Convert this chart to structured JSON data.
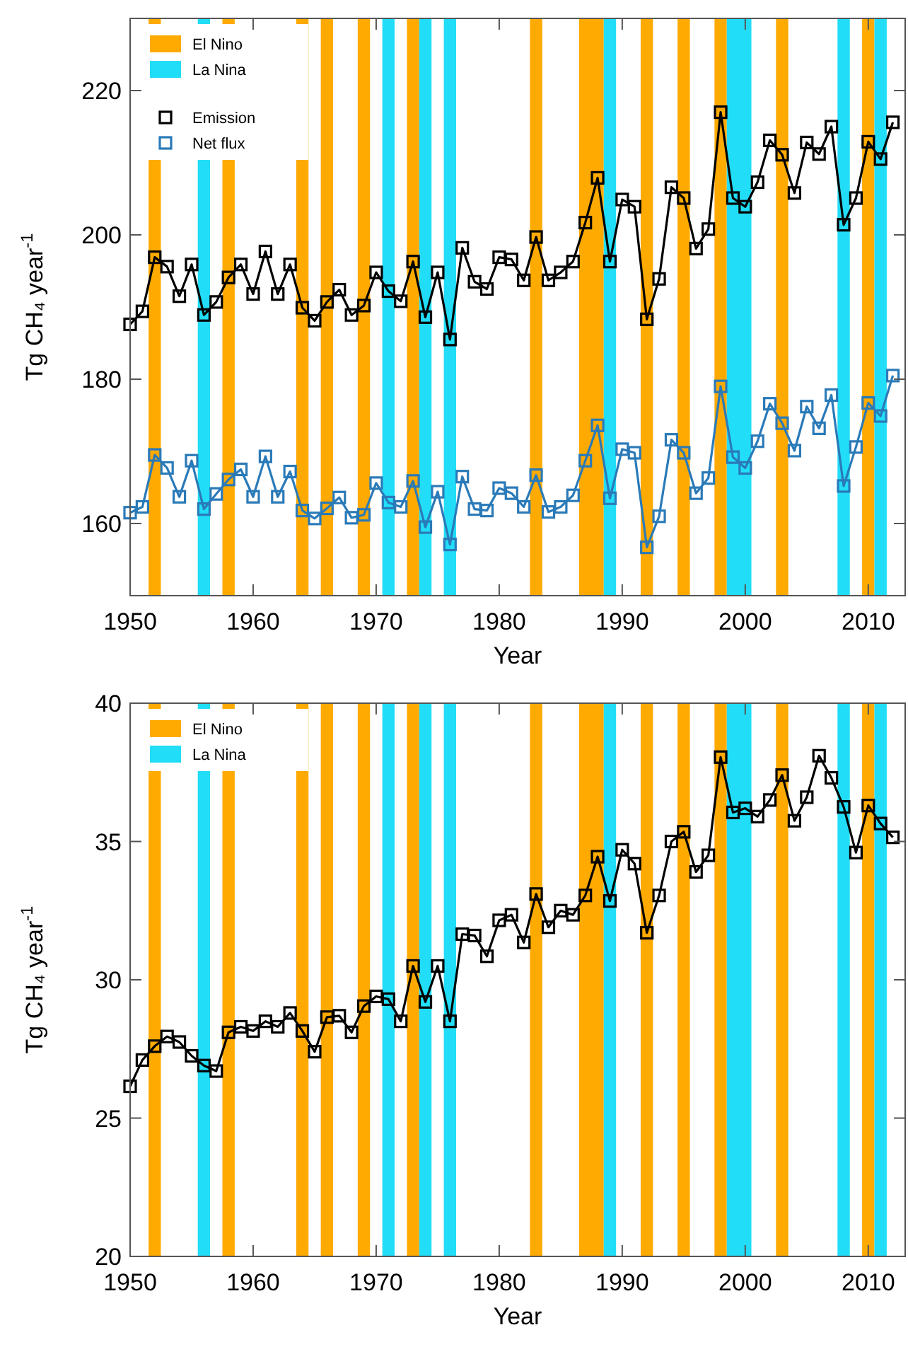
{
  "chart_data": [
    {
      "type": "line",
      "xlabel": "Year",
      "ylabel": "Tg CH₄ year$^{-1}$",
      "x": [
        1950,
        1951,
        1952,
        1953,
        1954,
        1955,
        1956,
        1957,
        1958,
        1959,
        1960,
        1961,
        1962,
        1963,
        1964,
        1965,
        1966,
        1967,
        1968,
        1969,
        1970,
        1971,
        1972,
        1973,
        1974,
        1975,
        1976,
        1977,
        1978,
        1979,
        1980,
        1981,
        1982,
        1983,
        1984,
        1985,
        1986,
        1987,
        1988,
        1989,
        1990,
        1991,
        1992,
        1993,
        1994,
        1995,
        1996,
        1997,
        1998,
        1999,
        2000,
        2001,
        2002,
        2003,
        2004,
        2005,
        2006,
        2007,
        2008,
        2009,
        2010,
        2011,
        2012
      ],
      "series": [
        {
          "name": "Emission",
          "color": "#000000",
          "values": [
            187.6,
            189.4,
            196.9,
            195.6,
            191.5,
            195.9,
            188.9,
            190.7,
            194.1,
            195.9,
            191.8,
            197.7,
            191.8,
            195.9,
            189.9,
            188.1,
            190.7,
            192.4,
            188.9,
            190.2,
            194.8,
            192.2,
            190.8,
            196.3,
            188.6,
            194.8,
            185.5,
            198.2,
            193.5,
            192.5,
            196.9,
            196.6,
            193.7,
            199.7,
            193.7,
            194.8,
            196.3,
            201.7,
            207.9,
            196.3,
            204.9,
            203.9,
            188.3,
            193.9,
            206.6,
            205.1,
            198.1,
            200.8,
            217.0,
            205.1,
            203.9,
            207.3,
            213.1,
            211.1,
            205.8,
            212.8,
            211.2,
            215.0,
            201.4,
            205.1,
            212.9,
            210.5,
            215.6
          ]
        },
        {
          "name": "Net flux",
          "color": "#2a7ab8",
          "values": [
            161.5,
            162.3,
            169.5,
            167.7,
            163.7,
            168.7,
            162.0,
            164.1,
            166.1,
            167.5,
            163.7,
            169.3,
            163.7,
            167.2,
            161.8,
            160.7,
            162.1,
            163.6,
            160.8,
            161.2,
            165.6,
            162.9,
            162.3,
            165.9,
            159.5,
            164.4,
            157.1,
            166.5,
            162.0,
            161.8,
            164.9,
            164.2,
            162.3,
            166.7,
            161.6,
            162.3,
            163.9,
            168.7,
            173.6,
            163.5,
            170.3,
            169.8,
            156.7,
            161.0,
            171.6,
            169.8,
            164.2,
            166.3,
            179.0,
            169.2,
            167.7,
            171.4,
            176.6,
            173.9,
            170.1,
            176.2,
            173.2,
            177.8,
            165.2,
            170.6,
            176.7,
            174.9,
            180.5
          ]
        }
      ],
      "xlim": [
        1950,
        2013
      ],
      "xticks": [
        1950,
        1960,
        1970,
        1980,
        1990,
        2000,
        2010
      ],
      "ylim": [
        150,
        230
      ],
      "yticks": [
        160,
        180,
        200,
        220
      ],
      "bands": [
        {
          "axis": "x",
          "from": 1951.5,
          "to": 1952.5,
          "label": "El Nino",
          "color": "#ffaa00"
        },
        {
          "axis": "x",
          "from": 1955.5,
          "to": 1956.5,
          "label": "La Nina",
          "color": "#22ddf7"
        },
        {
          "axis": "x",
          "from": 1957.5,
          "to": 1958.5,
          "color": "#ffaa00"
        },
        {
          "axis": "x",
          "from": 1963.5,
          "to": 1964.5,
          "color": "#ffaa00"
        },
        {
          "axis": "x",
          "from": 1965.5,
          "to": 1966.5,
          "color": "#ffaa00"
        },
        {
          "axis": "x",
          "from": 1968.5,
          "to": 1969.5,
          "color": "#ffaa00"
        },
        {
          "axis": "x",
          "from": 1970.5,
          "to": 1971.5,
          "color": "#22ddf7"
        },
        {
          "axis": "x",
          "from": 1972.5,
          "to": 1973.5,
          "color": "#ffaa00"
        },
        {
          "axis": "x",
          "from": 1973.5,
          "to": 1974.5,
          "color": "#22ddf7"
        },
        {
          "axis": "x",
          "from": 1975.5,
          "to": 1976.5,
          "color": "#22ddf7"
        },
        {
          "axis": "x",
          "from": 1982.5,
          "to": 1983.5,
          "color": "#ffaa00"
        },
        {
          "axis": "x",
          "from": 1986.5,
          "to": 1988.5,
          "color": "#ffaa00"
        },
        {
          "axis": "x",
          "from": 1988.5,
          "to": 1989.5,
          "color": "#22ddf7"
        },
        {
          "axis": "x",
          "from": 1991.5,
          "to": 1992.5,
          "color": "#ffaa00"
        },
        {
          "axis": "x",
          "from": 1994.5,
          "to": 1995.5,
          "color": "#ffaa00"
        },
        {
          "axis": "x",
          "from": 1997.5,
          "to": 1998.5,
          "color": "#ffaa00"
        },
        {
          "axis": "x",
          "from": 1998.5,
          "to": 2000.5,
          "color": "#22ddf7"
        },
        {
          "axis": "x",
          "from": 2002.5,
          "to": 2003.5,
          "color": "#ffaa00"
        },
        {
          "axis": "x",
          "from": 2007.5,
          "to": 2008.5,
          "color": "#22ddf7"
        },
        {
          "axis": "x",
          "from": 2009.5,
          "to": 2010.5,
          "color": "#ffaa00"
        },
        {
          "axis": "x",
          "from": 2010.5,
          "to": 2011.5,
          "color": "#22ddf7"
        }
      ],
      "marker": "square",
      "line_style": "solid",
      "legend": "top left",
      "grid": false
    },
    {
      "type": "line",
      "xlabel": "Year",
      "ylabel": "Tg CH₄ year$^{-1}$",
      "x": [
        1950,
        1951,
        1952,
        1953,
        1954,
        1955,
        1956,
        1957,
        1958,
        1959,
        1960,
        1961,
        1962,
        1963,
        1964,
        1965,
        1966,
        1967,
        1968,
        1969,
        1970,
        1971,
        1972,
        1973,
        1974,
        1975,
        1976,
        1977,
        1978,
        1979,
        1980,
        1981,
        1982,
        1983,
        1984,
        1985,
        1986,
        1987,
        1988,
        1989,
        1990,
        1991,
        1992,
        1993,
        1994,
        1995,
        1996,
        1997,
        1998,
        1999,
        2000,
        2001,
        2002,
        2003,
        2004,
        2005,
        2006,
        2007,
        2008,
        2009,
        2010,
        2011,
        2012
      ],
      "series": [
        {
          "color": "#000000",
          "values": [
            26.15,
            27.1,
            27.6,
            27.95,
            27.75,
            27.25,
            26.9,
            26.7,
            28.1,
            28.3,
            28.15,
            28.5,
            28.3,
            28.8,
            28.15,
            27.4,
            28.65,
            28.7,
            28.1,
            29.05,
            29.4,
            29.3,
            28.5,
            30.5,
            29.2,
            30.5,
            28.5,
            31.65,
            31.6,
            30.85,
            32.15,
            32.35,
            31.35,
            33.1,
            31.9,
            32.5,
            32.35,
            33.05,
            34.45,
            32.85,
            34.7,
            34.2,
            31.7,
            33.05,
            35.0,
            35.35,
            33.9,
            34.5,
            38.05,
            36.05,
            36.2,
            35.9,
            36.5,
            37.4,
            35.75,
            36.6,
            38.1,
            37.3,
            36.25,
            34.6,
            36.3,
            35.65,
            35.15
          ]
        }
      ],
      "xlim": [
        1950,
        2013
      ],
      "xticks": [
        1950,
        1960,
        1970,
        1980,
        1990,
        2000,
        2010
      ],
      "ylim": [
        20,
        40
      ],
      "yticks": [
        20,
        25,
        30,
        35,
        40
      ],
      "bands": [
        {
          "axis": "x",
          "from": 1951.5,
          "to": 1952.5,
          "label": "El Nino",
          "color": "#ffaa00"
        },
        {
          "axis": "x",
          "from": 1955.5,
          "to": 1956.5,
          "label": "La Nina",
          "color": "#22ddf7"
        },
        {
          "axis": "x",
          "from": 1957.5,
          "to": 1958.5,
          "color": "#ffaa00"
        },
        {
          "axis": "x",
          "from": 1963.5,
          "to": 1964.5,
          "color": "#ffaa00"
        },
        {
          "axis": "x",
          "from": 1965.5,
          "to": 1966.5,
          "color": "#ffaa00"
        },
        {
          "axis": "x",
          "from": 1968.5,
          "to": 1969.5,
          "color": "#ffaa00"
        },
        {
          "axis": "x",
          "from": 1970.5,
          "to": 1971.5,
          "color": "#22ddf7"
        },
        {
          "axis": "x",
          "from": 1972.5,
          "to": 1973.5,
          "color": "#ffaa00"
        },
        {
          "axis": "x",
          "from": 1973.5,
          "to": 1974.5,
          "color": "#22ddf7"
        },
        {
          "axis": "x",
          "from": 1975.5,
          "to": 1976.5,
          "color": "#22ddf7"
        },
        {
          "axis": "x",
          "from": 1982.5,
          "to": 1983.5,
          "color": "#ffaa00"
        },
        {
          "axis": "x",
          "from": 1986.5,
          "to": 1988.5,
          "color": "#ffaa00"
        },
        {
          "axis": "x",
          "from": 1988.5,
          "to": 1989.5,
          "color": "#22ddf7"
        },
        {
          "axis": "x",
          "from": 1991.5,
          "to": 1992.5,
          "color": "#ffaa00"
        },
        {
          "axis": "x",
          "from": 1994.5,
          "to": 1995.5,
          "color": "#ffaa00"
        },
        {
          "axis": "x",
          "from": 1997.5,
          "to": 1998.5,
          "color": "#ffaa00"
        },
        {
          "axis": "x",
          "from": 1998.5,
          "to": 2000.5,
          "color": "#22ddf7"
        },
        {
          "axis": "x",
          "from": 2002.5,
          "to": 2003.5,
          "color": "#ffaa00"
        },
        {
          "axis": "x",
          "from": 2007.5,
          "to": 2008.5,
          "color": "#22ddf7"
        },
        {
          "axis": "x",
          "from": 2009.5,
          "to": 2010.5,
          "color": "#ffaa00"
        },
        {
          "axis": "x",
          "from": 2010.5,
          "to": 2011.5,
          "color": "#22ddf7"
        }
      ],
      "marker": "square",
      "line_style": "solid",
      "legend": "top left",
      "grid": false
    }
  ]
}
